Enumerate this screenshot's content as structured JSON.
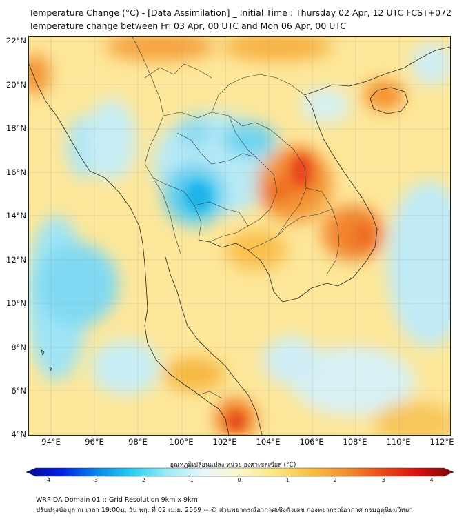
{
  "titles": {
    "line1": "Temperature Change (°C) - [Data Assimilation] _ Initial Time : Thursday 02 Apr, 12 UTC FCST+072",
    "line2": "Temperature change between Fri 03 Apr, 00 UTC and Mon 06 Apr, 00 UTC"
  },
  "lat_labels": [
    "22°N",
    "20°N",
    "18°N",
    "16°N",
    "14°N",
    "12°N",
    "10°N",
    "8°N",
    "6°N",
    "4°N"
  ],
  "lon_labels": [
    "94°E",
    "96°E",
    "98°E",
    "100°E",
    "102°E",
    "104°E",
    "106°E",
    "108°E",
    "110°E",
    "112°E"
  ],
  "colorbar": {
    "label": "อุณหภูมิเปลี่ยนแปลง หน่วย องศาเซลเซียส (°C)",
    "ticks": [
      "-4",
      "-3",
      "-2",
      "-1",
      "0",
      "1",
      "2",
      "3",
      "4"
    ],
    "colors": [
      "#0a0a8c",
      "#0020e0",
      "#0a88e8",
      "#2ad0f0",
      "#a0ecf6",
      "#eaf6fb",
      "#fbf6c8",
      "#fce680",
      "#f7c040",
      "#f29030",
      "#ea4a18",
      "#d41010",
      "#7a0606"
    ]
  },
  "footer": {
    "line1": "WRF-DA Domain 01 :: Grid Resolution 9km x 9km",
    "line2": "ปรับปรุงข้อมูล ณ เวลา 19:00น. วัน พฤ. ที่ 02 เม.ย. 2569 -- © ส่วนพยากรณ์อากาศเชิงตัวเลข กองพยากรณ์อากาศ กรมอุตุนิยมวิทยา"
  }
}
